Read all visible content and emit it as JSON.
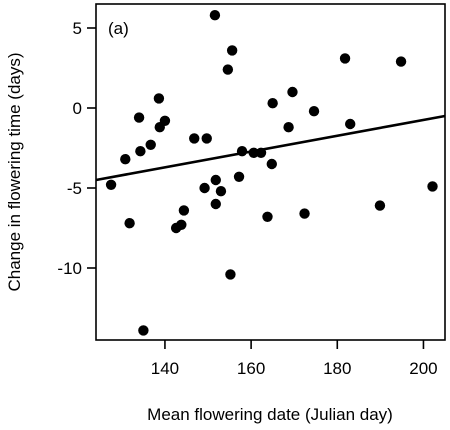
{
  "chart_data": {
    "type": "scatter",
    "panel_label": "(a)",
    "xlabel": "Mean flowering date (Julian day)",
    "ylabel": "Change in flowering time (days)",
    "xlim": [
      124,
      205
    ],
    "ylim": [
      -14.5,
      6.5
    ],
    "xticks": [
      140,
      160,
      180,
      200
    ],
    "yticks": [
      5,
      0,
      -5,
      -10
    ],
    "grid": false,
    "points": [
      {
        "x": 127.5,
        "y": -4.8
      },
      {
        "x": 130.8,
        "y": -3.2
      },
      {
        "x": 131.8,
        "y": -7.2
      },
      {
        "x": 134.0,
        "y": -0.6
      },
      {
        "x": 134.3,
        "y": -2.7
      },
      {
        "x": 135.0,
        "y": -13.9
      },
      {
        "x": 136.7,
        "y": -2.3
      },
      {
        "x": 138.6,
        "y": 0.6
      },
      {
        "x": 138.8,
        "y": -1.2
      },
      {
        "x": 140.0,
        "y": -0.8
      },
      {
        "x": 142.6,
        "y": -7.5
      },
      {
        "x": 143.8,
        "y": -7.3
      },
      {
        "x": 144.4,
        "y": -6.4
      },
      {
        "x": 146.8,
        "y": -1.9
      },
      {
        "x": 149.2,
        "y": -5.0
      },
      {
        "x": 149.7,
        "y": -1.9
      },
      {
        "x": 151.6,
        "y": 5.8
      },
      {
        "x": 151.8,
        "y": -4.5
      },
      {
        "x": 151.8,
        "y": -6.0
      },
      {
        "x": 153.0,
        "y": -5.2
      },
      {
        "x": 154.6,
        "y": 2.4
      },
      {
        "x": 155.2,
        "y": -10.4
      },
      {
        "x": 155.6,
        "y": 3.6
      },
      {
        "x": 157.2,
        "y": -4.3
      },
      {
        "x": 157.9,
        "y": -2.7
      },
      {
        "x": 160.6,
        "y": -2.8
      },
      {
        "x": 162.3,
        "y": -2.8
      },
      {
        "x": 163.8,
        "y": -6.8
      },
      {
        "x": 164.8,
        "y": -3.5
      },
      {
        "x": 165.0,
        "y": 0.3
      },
      {
        "x": 168.7,
        "y": -1.2
      },
      {
        "x": 169.6,
        "y": 1.0
      },
      {
        "x": 172.4,
        "y": -6.6
      },
      {
        "x": 174.6,
        "y": -0.2
      },
      {
        "x": 181.8,
        "y": 3.1
      },
      {
        "x": 183.0,
        "y": -1.0
      },
      {
        "x": 189.9,
        "y": -6.1
      },
      {
        "x": 194.8,
        "y": 2.9
      },
      {
        "x": 202.1,
        "y": -4.9
      }
    ],
    "fit_line": {
      "x": [
        124,
        205
      ],
      "y": [
        -4.5,
        -0.5
      ]
    }
  }
}
